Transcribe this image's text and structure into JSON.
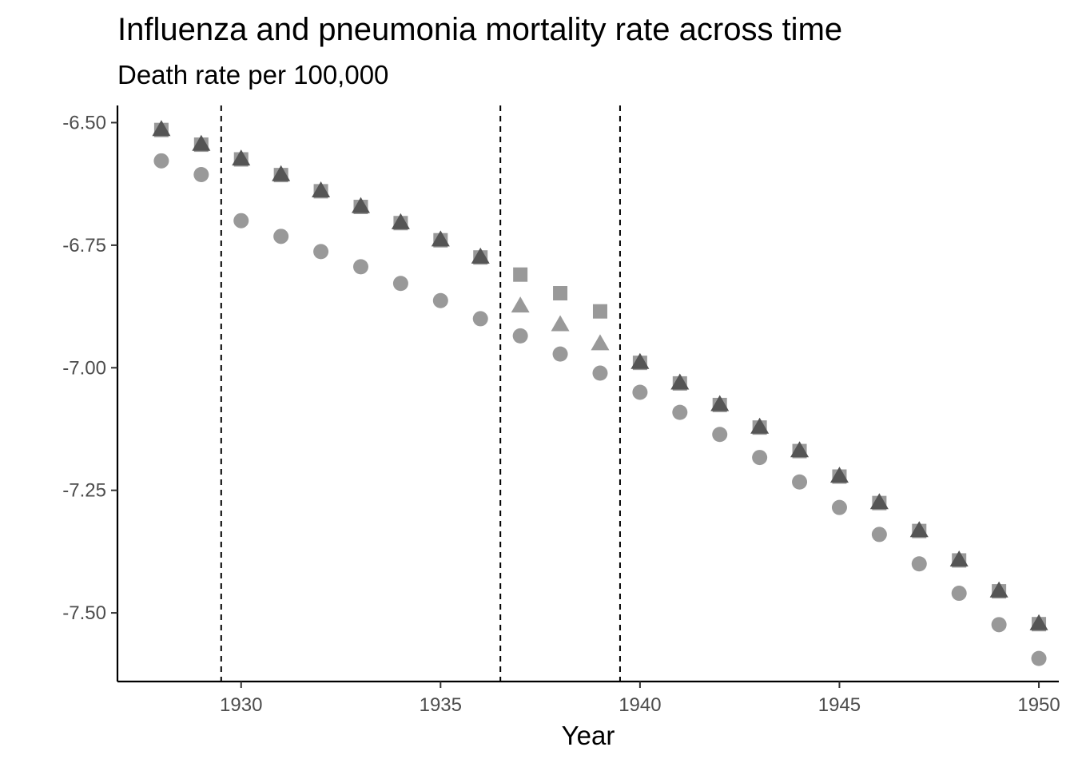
{
  "chart_data": {
    "type": "scatter",
    "title": "Influenza and pneumonia mortality rate across time",
    "subtitle": "Death rate per 100,000",
    "xlabel": "Year",
    "ylabel": "",
    "xlim": [
      1926.9,
      1950.5
    ],
    "ylim": [
      -7.64,
      -6.465
    ],
    "x_ticks": [
      1930,
      1935,
      1940,
      1945,
      1950
    ],
    "x_tick_labels": [
      "1930",
      "1935",
      "1940",
      "1945",
      "1950"
    ],
    "y_ticks": [
      -6.5,
      -6.75,
      -7.0,
      -7.25,
      -7.5
    ],
    "y_tick_labels": [
      "-6.50",
      "-6.75",
      "-7.00",
      "-7.25",
      "-7.50"
    ],
    "grid": false,
    "legend": "none",
    "reference_lines": [
      {
        "orientation": "vertical",
        "x": 1929.5,
        "style": "dashed"
      },
      {
        "orientation": "vertical",
        "x": 1936.5,
        "style": "dashed"
      },
      {
        "orientation": "vertical",
        "x": 1939.5,
        "style": "dashed"
      }
    ],
    "x": [
      1928,
      1929,
      1930,
      1931,
      1932,
      1933,
      1934,
      1935,
      1936,
      1937,
      1938,
      1939,
      1940,
      1941,
      1942,
      1943,
      1944,
      1945,
      1946,
      1947,
      1948,
      1949,
      1950
    ],
    "series": [
      {
        "marker": "square",
        "color": "#999999",
        "values": [
          -6.515,
          -6.545,
          -6.575,
          -6.607,
          -6.64,
          -6.672,
          -6.705,
          -6.74,
          -6.775,
          -6.81,
          -6.848,
          -6.885,
          -6.99,
          -7.032,
          -7.076,
          -7.122,
          -7.17,
          -7.222,
          -7.276,
          -7.333,
          -7.393,
          -7.456,
          -7.523
        ]
      },
      {
        "marker": "triangle",
        "color": "#555555",
        "values": [
          -6.515,
          -6.545,
          -6.575,
          -6.607,
          -6.64,
          -6.672,
          -6.705,
          -6.74,
          -6.775,
          null,
          null,
          null,
          -6.99,
          -7.032,
          -7.076,
          -7.122,
          -7.17,
          -7.222,
          -7.276,
          -7.333,
          -7.393,
          -7.456,
          -7.523
        ]
      },
      {
        "marker": "triangle",
        "color": "#999999",
        "values": [
          null,
          null,
          null,
          null,
          null,
          null,
          null,
          null,
          null,
          -6.875,
          -6.913,
          -6.952,
          null,
          null,
          null,
          null,
          null,
          null,
          null,
          null,
          null,
          null,
          null
        ]
      },
      {
        "marker": "circle",
        "color": "#999999",
        "values": [
          -6.578,
          -6.606,
          -6.7,
          -6.732,
          -6.763,
          -6.794,
          -6.828,
          -6.863,
          -6.9,
          -6.935,
          -6.972,
          -7.011,
          -7.05,
          -7.091,
          -7.136,
          -7.183,
          -7.233,
          -7.285,
          -7.34,
          -7.4,
          -7.46,
          -7.524,
          -7.593
        ]
      }
    ]
  }
}
